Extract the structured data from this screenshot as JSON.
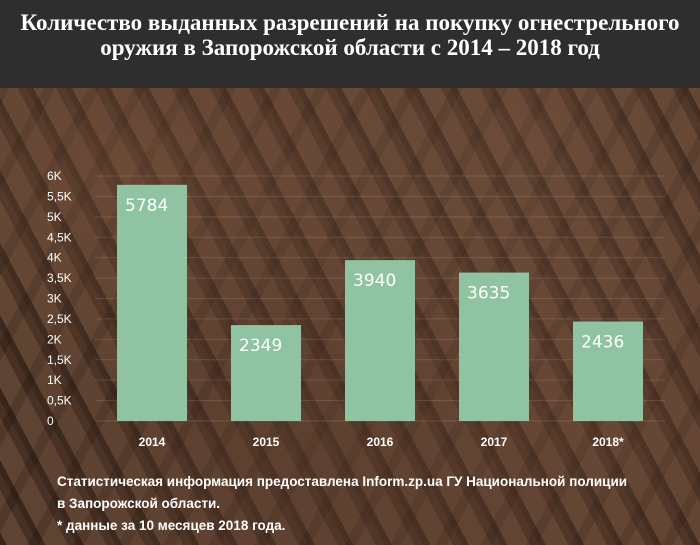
{
  "title": "Количество выданных разрешений на покупку огнестрельного оружия в Запорожской области с 2014 – 2018 год",
  "notes": {
    "line1": "Статистическая информация предоставлена Inform.zp.ua ГУ Национальной полиции",
    "line2": "в Запорожской области.",
    "line3": "* данные за 10 месяцев 2018 года."
  },
  "colors": {
    "bar": "#8fc3a2",
    "header": "#2e2e2e"
  },
  "chart_data": {
    "type": "bar",
    "categories": [
      "2014",
      "2015",
      "2016",
      "2017",
      "2018*"
    ],
    "values": [
      5784,
      2349,
      3940,
      3635,
      2436
    ],
    "title": "Количество выданных разрешений на покупку огнестрельного оружия в Запорожской области с 2014 – 2018 год",
    "xlabel": "",
    "ylabel": "",
    "ylim": [
      0,
      6000
    ],
    "yticks": [
      0,
      500,
      1000,
      1500,
      2000,
      2500,
      3000,
      3500,
      4000,
      4500,
      5000,
      5500,
      6000
    ],
    "ytick_labels": [
      "0",
      "0,5K",
      "1K",
      "1,5K",
      "2K",
      "2,5K",
      "3K",
      "3,5K",
      "4K",
      "4,5K",
      "5K",
      "5,5K",
      "6K"
    ],
    "data_labels": [
      "5784",
      "2349",
      "3940",
      "3635",
      "2436"
    ],
    "grid": true,
    "legend": "none"
  }
}
